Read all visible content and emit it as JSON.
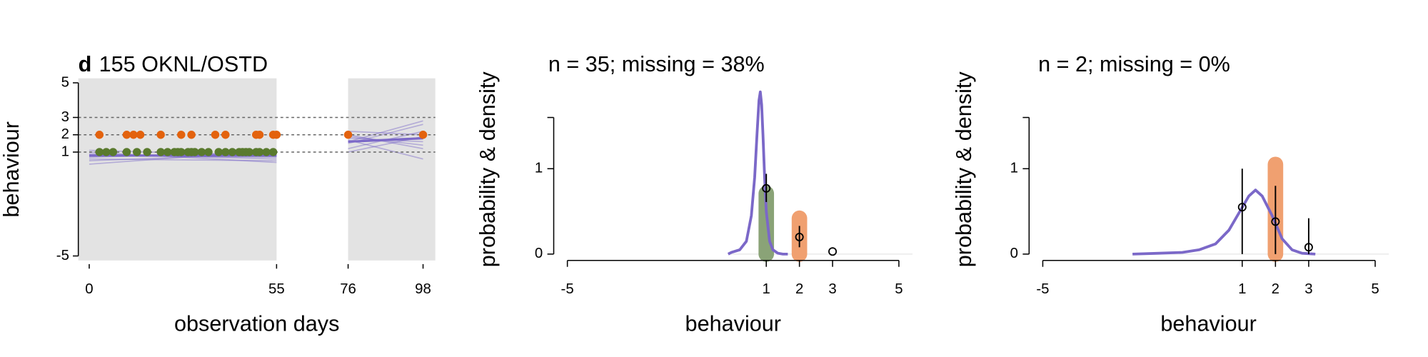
{
  "chart_data": [
    {
      "type": "line",
      "panel_label": "d",
      "title": "155 OKNL/OSTD",
      "x_label": "observation days",
      "y_label": "behaviour",
      "xlim": [
        -3.2,
        101.6
      ],
      "ylim": [
        -5.26,
        5.26
      ],
      "xticks": [
        0,
        55,
        76,
        98
      ],
      "yticks": [
        -5,
        1,
        2,
        3,
        5
      ],
      "shaded_ranges": [
        [
          -3.2,
          55
        ],
        [
          76,
          101.6
        ]
      ],
      "shade_color": "#e3e3e3",
      "hlines": [
        1,
        2,
        3
      ],
      "line_color": "#7b68c8",
      "lines": [
        {
          "x": [
            0,
            55
          ],
          "values": [
            0.9,
            0.6
          ]
        },
        {
          "x": [
            0,
            55
          ],
          "values": [
            1.1,
            0.8
          ]
        },
        {
          "x": [
            0,
            55
          ],
          "values": [
            0.5,
            0.9
          ]
        },
        {
          "x": [
            0,
            55
          ],
          "values": [
            0.7,
            1.0
          ]
        },
        {
          "x": [
            0,
            55
          ],
          "values": [
            0.3,
            1.1
          ]
        },
        {
          "x": [
            0,
            55
          ],
          "values": [
            1.0,
            0.4
          ]
        },
        {
          "x": [
            0,
            55
          ],
          "values": [
            0.8,
            0.7
          ]
        },
        {
          "x": [
            0,
            55
          ],
          "values": [
            0.6,
            0.5
          ]
        },
        {
          "x": [
            76,
            98
          ],
          "values": [
            1.8,
            1.6
          ]
        },
        {
          "x": [
            76,
            98
          ],
          "values": [
            1.5,
            2.6
          ]
        },
        {
          "x": [
            76,
            98
          ],
          "values": [
            2.0,
            1.2
          ]
        },
        {
          "x": [
            76,
            98
          ],
          "values": [
            1.2,
            2.2
          ]
        },
        {
          "x": [
            76,
            98
          ],
          "values": [
            1.7,
            0.6
          ]
        },
        {
          "x": [
            76,
            98
          ],
          "values": [
            2.2,
            2.0
          ]
        },
        {
          "x": [
            76,
            98
          ],
          "values": [
            1.0,
            1.9
          ]
        },
        {
          "x": [
            76,
            98
          ],
          "values": [
            1.6,
            2.8
          ]
        },
        {
          "x": [
            76,
            98
          ],
          "values": [
            1.9,
            1.4
          ]
        }
      ],
      "mean_lines": [
        {
          "x": [
            0,
            55
          ],
          "values": [
            0.8,
            0.8
          ]
        },
        {
          "x": [
            76,
            98
          ],
          "values": [
            1.6,
            1.8
          ]
        }
      ],
      "series": [
        {
          "color": "#e3620d",
          "x": [
            3,
            11,
            13,
            15,
            21,
            27,
            30,
            37,
            40,
            49,
            50,
            54,
            55,
            76,
            98
          ],
          "values": [
            2,
            2,
            2,
            2,
            2,
            2,
            2,
            2,
            2,
            2,
            2,
            2,
            2,
            2,
            2
          ]
        },
        {
          "color": "#5a7a2e",
          "x": [
            3,
            5,
            7,
            11,
            14,
            17,
            21,
            23,
            25,
            26,
            27,
            29,
            30,
            31,
            33,
            35,
            38,
            40,
            42,
            44,
            45,
            46,
            47,
            49,
            50,
            52,
            54
          ],
          "values": [
            1,
            1,
            1,
            1,
            1,
            1,
            1,
            1,
            1,
            1,
            1,
            1,
            1,
            1,
            1,
            1,
            1,
            1,
            1,
            1,
            1,
            1,
            1,
            1,
            1,
            1,
            1
          ]
        }
      ]
    },
    {
      "type": "density",
      "title": "n = 35; missing = 38%",
      "x_label": "behaviour",
      "y_label": "probability & density",
      "xlim": [
        -5,
        5
      ],
      "ylim": [
        0,
        1.6
      ],
      "xticks": [
        -5,
        1,
        2,
        3,
        5
      ],
      "yticks": [
        0,
        1
      ],
      "density": {
        "color": "#7b68c8",
        "x": [
          -0.15,
          -0.05,
          0.2,
          0.4,
          0.55,
          0.65,
          0.72,
          0.78,
          0.82,
          0.86,
          0.9,
          0.95,
          1.0,
          1.1,
          1.2,
          1.35,
          1.5,
          1.65
        ],
        "values": [
          0,
          0.02,
          0.05,
          0.15,
          0.45,
          0.9,
          1.4,
          1.8,
          1.9,
          1.75,
          1.4,
          0.9,
          0.5,
          0.15,
          0.05,
          0.01,
          0,
          0
        ]
      },
      "bars": {
        "x": [
          1,
          2
        ],
        "values": [
          0.71,
          0.42
        ],
        "colors": [
          "#8aa377",
          "#f0a070"
        ]
      },
      "points": {
        "x": [
          1,
          2,
          3
        ],
        "values": [
          0.77,
          0.2,
          0.03
        ],
        "lower": [
          0.61,
          0.08,
          null
        ],
        "upper": [
          0.94,
          0.33,
          null
        ]
      }
    },
    {
      "type": "density",
      "title": "n = 2; missing = 0%",
      "x_label": "behaviour",
      "y_label": "probability & density",
      "xlim": [
        -5,
        5
      ],
      "ylim": [
        0,
        1.6
      ],
      "xticks": [
        -5,
        1,
        2,
        3,
        5
      ],
      "yticks": [
        0,
        1
      ],
      "density": {
        "color": "#7b68c8",
        "x": [
          -2.3,
          -1.5,
          -0.8,
          -0.3,
          0.2,
          0.6,
          0.9,
          1.2,
          1.4,
          1.6,
          1.9,
          2.2,
          2.5,
          2.8,
          3.2
        ],
        "values": [
          0,
          0.01,
          0.02,
          0.05,
          0.12,
          0.28,
          0.48,
          0.68,
          0.75,
          0.68,
          0.45,
          0.18,
          0.05,
          0.01,
          0
        ]
      },
      "bars": {
        "x": [
          2
        ],
        "values": [
          1.05
        ],
        "colors": [
          "#f0a070"
        ]
      },
      "points": {
        "x": [
          1,
          2,
          3
        ],
        "values": [
          0.55,
          0.38,
          0.08
        ],
        "lower": [
          0,
          0,
          0
        ],
        "upper": [
          1.0,
          0.8,
          0.42
        ]
      }
    }
  ]
}
